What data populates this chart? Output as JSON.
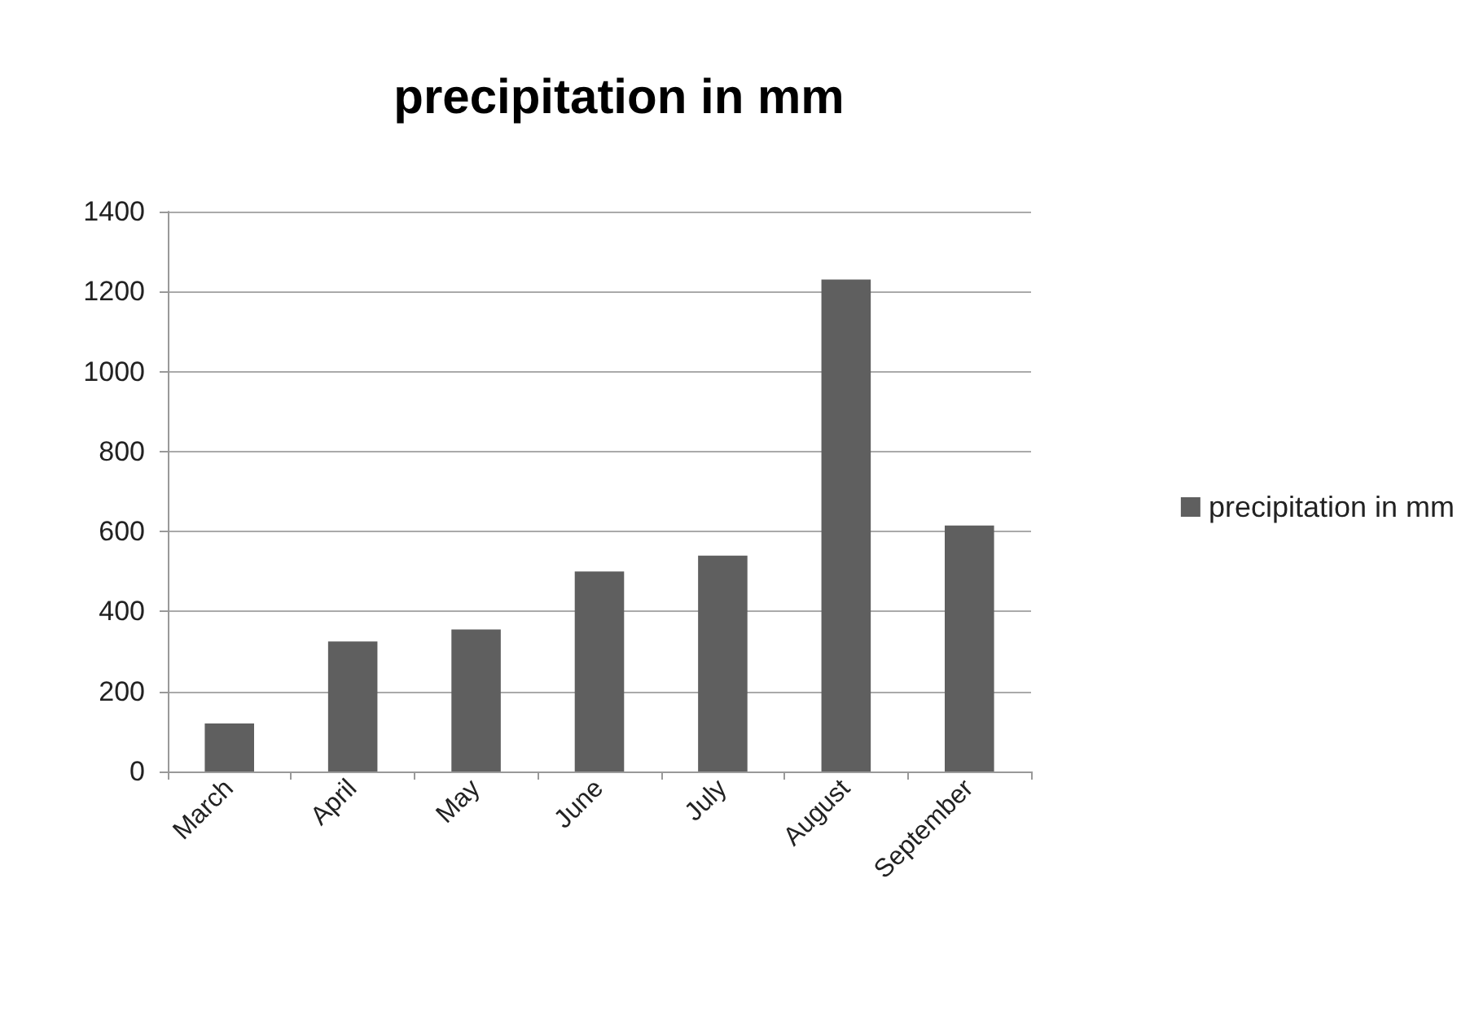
{
  "chart_data": {
    "type": "bar",
    "title": "precipitation in mm",
    "categories": [
      "March",
      "April",
      "May",
      "June",
      "July",
      "August",
      "September"
    ],
    "series": [
      {
        "name": "precipitation in mm",
        "color": "#5f5f5f",
        "values": [
          120,
          325,
          355,
          500,
          540,
          1230,
          615
        ]
      }
    ],
    "ylim": [
      0,
      1400
    ],
    "yticks": [
      0,
      200,
      400,
      600,
      800,
      1000,
      1200,
      1400
    ],
    "grid": "y",
    "legend": "right"
  }
}
